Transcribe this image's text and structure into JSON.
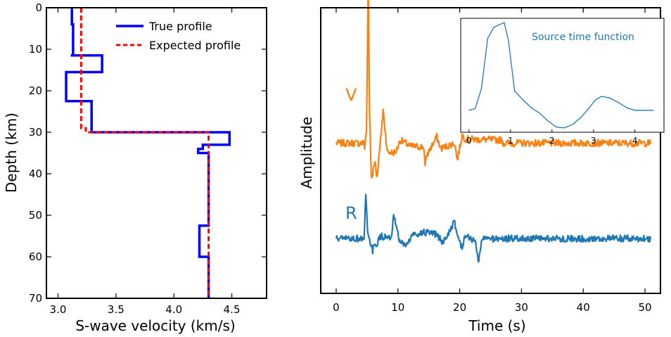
{
  "colors": {
    "true_profile": "#0000ff",
    "expected_profile": "#ff0000",
    "v_trace": "#ff7f0e",
    "r_trace": "#1f77b4",
    "inset": "#1f77b4"
  },
  "chart_data": [
    {
      "type": "line",
      "xlabel": "S-wave velocity (km/s)",
      "ylabel": "Depth (km)",
      "xlim": [
        2.9,
        4.8
      ],
      "ylim": [
        70,
        0
      ],
      "y_inverted": true,
      "xticks": [
        "3.0",
        "3.5",
        "4.0",
        "4.5"
      ],
      "yticks": [
        "0",
        "10",
        "20",
        "30",
        "40",
        "50",
        "60",
        "70"
      ],
      "legend_position": "top-right",
      "series": [
        {
          "name": "True profile",
          "style": "solid",
          "x": [
            3.12,
            3.12,
            3.13,
            3.13,
            3.11,
            3.11,
            3.38,
            3.38,
            3.07,
            3.07,
            3.06,
            3.06,
            3.29,
            3.29,
            4.48,
            4.48,
            4.25,
            4.25,
            4.21,
            4.21,
            4.3,
            4.3,
            4.22,
            4.22,
            4.3,
            4.3
          ],
          "y": [
            0,
            4,
            4,
            11.5,
            11.5,
            11.5,
            11.5,
            15.5,
            15.5,
            22.5,
            22.5,
            22.5,
            22.5,
            30,
            30,
            33,
            33,
            34,
            34,
            35,
            35,
            52.5,
            52.5,
            60,
            60,
            70
          ]
        },
        {
          "name": "Expected profile",
          "style": "dashed",
          "x": [
            3.2,
            3.2,
            3.24,
            3.24,
            4.3,
            4.3
          ],
          "y": [
            0,
            29,
            29,
            30,
            30,
            70
          ]
        }
      ]
    },
    {
      "type": "line",
      "xlabel": "Time (s)",
      "ylabel": "Amplitude",
      "xlim": [
        -2.5,
        52.5
      ],
      "xticks": [
        "0",
        "10",
        "20",
        "30",
        "40",
        "50"
      ],
      "trace_labels": [
        "V",
        "R"
      ],
      "series": [
        {
          "name": "V",
          "baseline": 0.62,
          "features": [
            [
              4.6,
              -0.05
            ],
            [
              4.9,
              0.15
            ],
            [
              5.2,
              2.05
            ],
            [
              5.4,
              0.4
            ],
            [
              5.7,
              -0.45
            ],
            [
              6.3,
              -0.22
            ],
            [
              6.6,
              -0.45
            ],
            [
              7.2,
              0.05
            ],
            [
              7.6,
              0.42
            ],
            [
              8.3,
              -0.12
            ],
            [
              9.6,
              -0.12
            ],
            [
              10.4,
              0.04
            ],
            [
              12.0,
              -0.04
            ],
            [
              14.2,
              -0.05
            ],
            [
              14.4,
              -0.3
            ],
            [
              14.7,
              -0.15
            ],
            [
              16.3,
              0.08
            ],
            [
              16.9,
              -0.07
            ],
            [
              19.2,
              0.0
            ],
            [
              19.6,
              -0.22
            ],
            [
              20.4,
              0.1
            ],
            [
              21.0,
              0.05
            ],
            [
              27.0,
              0.04
            ]
          ]
        },
        {
          "name": "R",
          "baseline": -0.6,
          "features": [
            [
              4.5,
              -0.02
            ],
            [
              4.8,
              0.55
            ],
            [
              5.1,
              0.05
            ],
            [
              5.9,
              -0.15
            ],
            [
              6.4,
              -0.08
            ],
            [
              7.3,
              0.03
            ],
            [
              9.0,
              0.0
            ],
            [
              9.3,
              0.3
            ],
            [
              9.7,
              0.15
            ],
            [
              10.3,
              -0.05
            ],
            [
              11.4,
              -0.08
            ],
            [
              12.4,
              0.05
            ],
            [
              14.2,
              0.08
            ],
            [
              16.2,
              0.05
            ],
            [
              17.3,
              -0.05
            ],
            [
              18.4,
              0.1
            ],
            [
              19.1,
              0.22
            ],
            [
              19.6,
              0.05
            ],
            [
              20.4,
              -0.12
            ],
            [
              21.0,
              0.05
            ],
            [
              22.6,
              -0.05
            ],
            [
              23.0,
              -0.3
            ],
            [
              23.4,
              -0.1
            ],
            [
              23.9,
              0.05
            ]
          ]
        }
      ]
    },
    {
      "type": "line",
      "title": "Source time function",
      "xlim": [
        -0.2,
        4.7
      ],
      "ylim": [
        -0.25,
        1.05
      ],
      "xticks": [
        "0",
        "1",
        "2",
        "3",
        "4"
      ],
      "series": [
        {
          "x": [
            0.0,
            0.15,
            0.3,
            0.45,
            0.6,
            0.75,
            0.85,
            0.95,
            1.1,
            1.3,
            1.5,
            1.7,
            1.9,
            2.1,
            2.3,
            2.5,
            2.7,
            2.9,
            3.05,
            3.2,
            3.4,
            3.6,
            3.8,
            4.0,
            4.2,
            4.45
          ],
          "y": [
            0.0,
            0.02,
            0.25,
            0.82,
            0.95,
            0.98,
            1.0,
            0.8,
            0.22,
            0.12,
            0.03,
            -0.03,
            -0.12,
            -0.19,
            -0.2,
            -0.16,
            -0.08,
            0.03,
            0.12,
            0.16,
            0.14,
            0.09,
            0.03,
            0.0,
            0.0,
            0.0
          ]
        }
      ]
    }
  ]
}
